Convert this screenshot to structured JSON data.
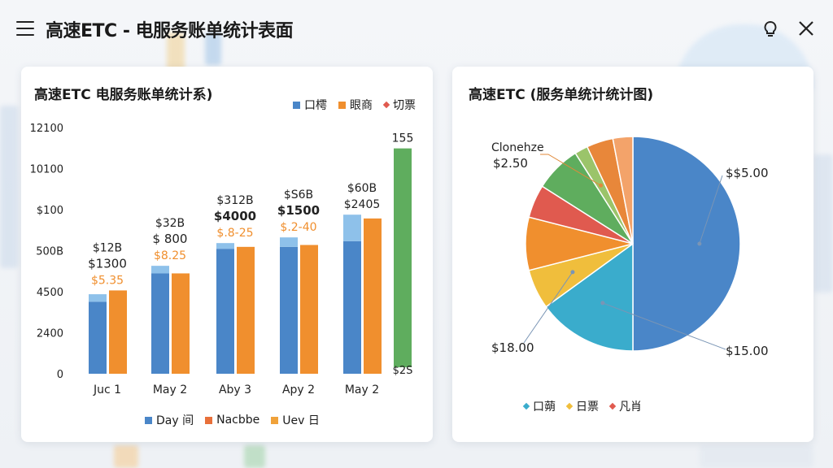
{
  "header": {
    "title": "高速ETC - 电服务账单统计表面"
  },
  "icons": {
    "menu": "hamburger-menu-icon",
    "hint": "lightbulb-icon",
    "close": "close-icon"
  },
  "colors": {
    "blue": "#4a86c8",
    "lightblue": "#8ec1ea",
    "orange": "#f08f2e",
    "green": "#5fad5e",
    "teal": "#3aaccc",
    "yellow": "#f0be3c",
    "red": "#e05a4f",
    "peach": "#f3a36a"
  },
  "left_chart": {
    "title": "高速ETC  电服务账单统计系)",
    "top_legend": [
      {
        "label": "口樗",
        "color": "#4a86c8",
        "shape": "square"
      },
      {
        "label": "眼商",
        "color": "#f08f2e",
        "shape": "square"
      },
      {
        "label": "切票",
        "color": "#e05a4f",
        "shape": "diamond"
      }
    ],
    "bottom_legend": [
      {
        "label": "Day 间",
        "color": "#4a86c8"
      },
      {
        "label": "Nacbbe",
        "color": "#e8703a"
      },
      {
        "label": "Uev 日",
        "color": "#f0a23a"
      }
    ]
  },
  "chart_data": [
    {
      "type": "bar",
      "categories": [
        "Juc 1",
        "May 2",
        "Aby 3",
        "Apy 2",
        "May 2"
      ],
      "y_tick_labels": [
        "0",
        "2400",
        "4500",
        "500B",
        "$100",
        "10100",
        "12100"
      ],
      "series": [
        {
          "name": "Day 间",
          "values": [
            1900,
            2650,
            3300,
            3350,
            3500
          ],
          "top_segment": [
            200,
            200,
            150,
            250,
            700
          ]
        },
        {
          "name": "Nacbbe",
          "values": [
            2200,
            2650,
            3350,
            3400,
            4100
          ]
        }
      ],
      "extra_bar": {
        "value": 5950,
        "top_label": "155",
        "bottom_label": "$2S"
      },
      "data_labels": [
        {
          "lines": [
            "$12B",
            "$1300",
            "$5.35"
          ]
        },
        {
          "lines": [
            "$32B",
            "$ 800",
            "$8.25"
          ]
        },
        {
          "lines": [
            "$312B",
            "$4000",
            "$.8-25"
          ]
        },
        {
          "lines": [
            "$S6B",
            "$1500",
            "$.2-40"
          ]
        },
        {
          "lines": [
            "$60B",
            "$2405"
          ]
        }
      ]
    },
    {
      "type": "pie",
      "title": "高速ETC (服务单统计统计图)",
      "slices": [
        {
          "label": "$$5.00",
          "value": 50,
          "color": "#4a86c8"
        },
        {
          "label": "",
          "value": 15,
          "color": "#3aaccc"
        },
        {
          "label": "$18.00",
          "value": 6,
          "color": "#f0be3c"
        },
        {
          "label": "",
          "value": 8,
          "color": "#f08f2e"
        },
        {
          "label": "",
          "value": 5,
          "color": "#e05a4f"
        },
        {
          "label": "",
          "value": 7,
          "color": "#5fad5e"
        },
        {
          "label": "",
          "value": 2,
          "color": "#9bc46a"
        },
        {
          "label": "",
          "value": 4,
          "color": "#e8873a"
        },
        {
          "label": "",
          "value": 3,
          "color": "#f3a36a"
        }
      ],
      "callouts": {
        "top_left_name": "Clonehze",
        "top_left_value": "$2.50",
        "bottom_right_value": "$15.00"
      },
      "legend": [
        {
          "label": "口蒴",
          "color": "#3aaccc"
        },
        {
          "label": "日票",
          "color": "#f0be3c"
        },
        {
          "label": "凡肖",
          "color": "#e05a4f"
        }
      ]
    }
  ]
}
